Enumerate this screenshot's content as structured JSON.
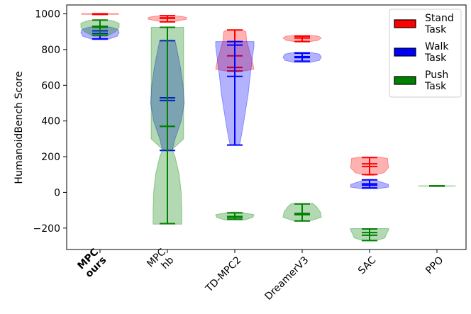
{
  "chart_data": {
    "type": "violin",
    "ylabel": "HumanoidBench Score",
    "ylim": [
      -320,
      1050
    ],
    "yticks": [
      -200,
      0,
      200,
      400,
      600,
      800,
      1000
    ],
    "categories": [
      {
        "lines": [
          "MPC",
          "ours"
        ],
        "bold": true
      },
      {
        "lines": [
          "MPC",
          "hb"
        ],
        "bold": false
      },
      {
        "lines": [
          "TD-MPC2"
        ],
        "bold": false
      },
      {
        "lines": [
          "DreamerV3"
        ],
        "bold": false
      },
      {
        "lines": [
          "SAC"
        ],
        "bold": false
      },
      {
        "lines": [
          "PPO"
        ],
        "bold": false
      }
    ],
    "legend": {
      "position": "top-right",
      "entries": [
        {
          "lines": [
            "Stand",
            "Task"
          ],
          "color": "#ff0000"
        },
        {
          "lines": [
            "Walk",
            "Task"
          ],
          "color": "#0000ff"
        },
        {
          "lines": [
            "Push",
            "Task"
          ],
          "color": "#008000"
        }
      ]
    },
    "series": [
      {
        "task": "stand",
        "color": "#ff0000",
        "violins": [
          {
            "cat": 0,
            "min": 997,
            "max": 1001,
            "median": 999,
            "mean": 999,
            "profile": [
              [
                997,
                0.92
              ],
              [
                999,
                1.0
              ],
              [
                1001,
                0.92
              ]
            ]
          },
          {
            "cat": 1,
            "min": 955,
            "max": 990,
            "median": 975,
            "mean": 978,
            "profile": [
              [
                955,
                0.25
              ],
              [
                962,
                0.6
              ],
              [
                970,
                1.0
              ],
              [
                980,
                1.0
              ],
              [
                986,
                0.75
              ],
              [
                990,
                0.3
              ]
            ]
          },
          {
            "cat": 2,
            "min": 680,
            "max": 910,
            "median": 700,
            "mean": 765,
            "profile": [
              [
                675,
                0.2
              ],
              [
                690,
                1.0
              ],
              [
                720,
                0.95
              ],
              [
                780,
                0.8
              ],
              [
                850,
                0.62
              ],
              [
                900,
                0.58
              ],
              [
                910,
                0.4
              ]
            ]
          },
          {
            "cat": 3,
            "min": 845,
            "max": 875,
            "median": 865,
            "mean": 865,
            "profile": [
              [
                842,
                0.25
              ],
              [
                852,
                0.85
              ],
              [
                865,
                1.0
              ],
              [
                875,
                0.85
              ],
              [
                880,
                0.4
              ]
            ]
          },
          {
            "cat": 4,
            "min": 100,
            "max": 195,
            "median": 145,
            "mean": 160,
            "profile": [
              [
                95,
                0.2
              ],
              [
                110,
                0.75
              ],
              [
                140,
                1.0
              ],
              [
                170,
                0.95
              ],
              [
                190,
                0.95
              ],
              [
                197,
                0.55
              ]
            ]
          }
        ]
      },
      {
        "task": "walk",
        "color": "#0000ff",
        "violins": [
          {
            "cat": 0,
            "min": 860,
            "max": 930,
            "median": 890,
            "mean": 905,
            "profile": [
              [
                855,
                0.35
              ],
              [
                875,
                0.9
              ],
              [
                895,
                1.0
              ],
              [
                912,
                0.95
              ],
              [
                925,
                0.6
              ],
              [
                932,
                0.2
              ]
            ]
          },
          {
            "cat": 1,
            "min": 235,
            "max": 850,
            "median": 515,
            "mean": 530,
            "profile": [
              [
                235,
                0.25
              ],
              [
                300,
                0.4
              ],
              [
                400,
                0.72
              ],
              [
                500,
                0.88
              ],
              [
                600,
                0.82
              ],
              [
                700,
                0.68
              ],
              [
                800,
                0.5
              ],
              [
                850,
                0.4
              ]
            ]
          },
          {
            "cat": 2,
            "min": 265,
            "max": 845,
            "median": 825,
            "mean": 650,
            "profile": [
              [
                265,
                0.25
              ],
              [
                350,
                0.4
              ],
              [
                450,
                0.55
              ],
              [
                550,
                0.7
              ],
              [
                650,
                0.8
              ],
              [
                750,
                0.92
              ],
              [
                820,
                1.0
              ],
              [
                845,
                1.0
              ]
            ]
          },
          {
            "cat": 3,
            "min": 735,
            "max": 780,
            "median": 755,
            "mean": 760,
            "profile": [
              [
                728,
                0.4
              ],
              [
                740,
                0.9
              ],
              [
                758,
                1.0
              ],
              [
                775,
                0.9
              ],
              [
                786,
                0.35
              ]
            ]
          },
          {
            "cat": 4,
            "min": 25,
            "max": 70,
            "median": 40,
            "mean": 48,
            "profile": [
              [
                20,
                0.4
              ],
              [
                30,
                1.0
              ],
              [
                45,
                0.98
              ],
              [
                60,
                0.55
              ],
              [
                72,
                0.2
              ]
            ]
          }
        ]
      },
      {
        "task": "push",
        "color": "#008000",
        "violins": [
          {
            "cat": 0,
            "min": 880,
            "max": 965,
            "median": 925,
            "mean": 930,
            "profile": [
              [
                875,
                0.35
              ],
              [
                900,
                0.8
              ],
              [
                925,
                1.0
              ],
              [
                948,
                1.0
              ],
              [
                962,
                0.65
              ],
              [
                968,
                0.25
              ]
            ]
          },
          {
            "cat": 1,
            "min": -175,
            "max": 925,
            "median": 370,
            "mean": 370,
            "profile": [
              [
                -178,
                0.75
              ],
              [
                -100,
                0.75
              ],
              [
                0,
                0.72
              ],
              [
                100,
                0.62
              ],
              [
                200,
                0.4
              ],
              [
                240,
                0.25
              ],
              [
                300,
                0.85
              ],
              [
                600,
                0.85
              ],
              [
                900,
                0.85
              ],
              [
                925,
                0.85
              ]
            ]
          },
          {
            "cat": 2,
            "min": -150,
            "max": -115,
            "median": -140,
            "mean": -135,
            "profile": [
              [
                -155,
                0.5
              ],
              [
                -140,
                0.95
              ],
              [
                -125,
                1.0
              ],
              [
                -115,
                0.5
              ],
              [
                -110,
                0.2
              ]
            ]
          },
          {
            "cat": 3,
            "min": -160,
            "max": -65,
            "median": -125,
            "mean": -118,
            "profile": [
              [
                -160,
                0.4
              ],
              [
                -140,
                1.0
              ],
              [
                -110,
                0.95
              ],
              [
                -80,
                0.75
              ],
              [
                -62,
                0.55
              ]
            ]
          },
          {
            "cat": 4,
            "min": -270,
            "max": -205,
            "median": -225,
            "mean": -240,
            "profile": [
              [
                -272,
                0.3
              ],
              [
                -255,
                0.8
              ],
              [
                -230,
                0.9
              ],
              [
                -210,
                1.0
              ],
              [
                -203,
                1.0
              ]
            ]
          }
        ]
      },
      {
        "task": "ppo",
        "color": "#008000",
        "violins": [
          {
            "cat": 5,
            "min": 35,
            "max": 37,
            "median": 36,
            "mean": 36,
            "profile": [
              [
                35,
                0.9
              ],
              [
                36,
                1.0
              ],
              [
                37,
                0.9
              ]
            ]
          }
        ]
      }
    ]
  }
}
